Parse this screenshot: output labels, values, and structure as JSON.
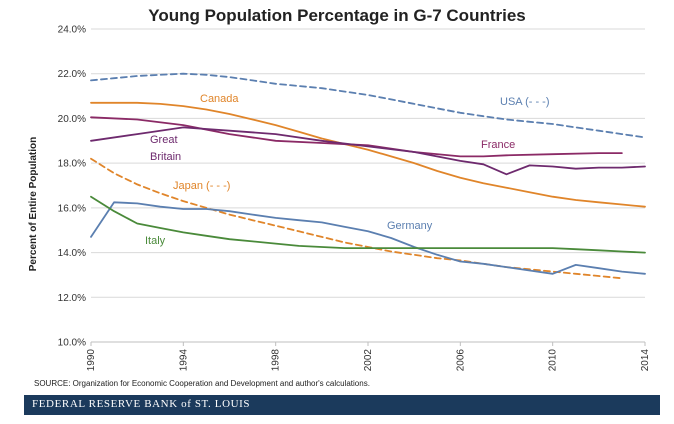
{
  "chart_data": {
    "type": "line",
    "title": "Young Population Percentage in G-7 Countries",
    "ylabel": "Percent of Entire Population",
    "xlabel": "",
    "x_ticks": [
      "1990",
      "1994",
      "1998",
      "2002",
      "2006",
      "2010",
      "2014"
    ],
    "y_ticks": [
      "10.0%",
      "12.0%",
      "14.0%",
      "16.0%",
      "18.0%",
      "20.0%",
      "22.0%",
      "24.0%"
    ],
    "xlim": [
      1990,
      2014
    ],
    "ylim": [
      10,
      24
    ],
    "grid": "horizontal",
    "series": [
      {
        "name": "USA (- - -)",
        "color": "#5b7fb0",
        "dash": true,
        "x": [
          1990,
          1991,
          1992,
          1993,
          1994,
          1995,
          1996,
          1997,
          1998,
          1999,
          2000,
          2001,
          2002,
          2003,
          2004,
          2005,
          2006,
          2007,
          2008,
          2009,
          2010,
          2011,
          2012,
          2013,
          2014
        ],
        "y": [
          21.7,
          21.8,
          21.9,
          21.95,
          22.0,
          21.95,
          21.85,
          21.7,
          21.55,
          21.45,
          21.35,
          21.2,
          21.05,
          20.85,
          20.65,
          20.45,
          20.25,
          20.1,
          19.95,
          19.85,
          19.75,
          19.6,
          19.45,
          19.3,
          19.15
        ]
      },
      {
        "name": "Canada",
        "color": "#e0852a",
        "x": [
          1990,
          1991,
          1992,
          1993,
          1994,
          1995,
          1996,
          1997,
          1998,
          1999,
          2000,
          2001,
          2002,
          2003,
          2004,
          2005,
          2006,
          2007,
          2008,
          2009,
          2010,
          2011,
          2012,
          2013,
          2014
        ],
        "y": [
          20.7,
          20.7,
          20.7,
          20.65,
          20.55,
          20.4,
          20.2,
          19.95,
          19.7,
          19.4,
          19.1,
          18.85,
          18.6,
          18.3,
          18.0,
          17.65,
          17.35,
          17.1,
          16.9,
          16.7,
          16.5,
          16.35,
          16.25,
          16.15,
          16.05
        ]
      },
      {
        "name": "France",
        "color": "#8b2a66",
        "x": [
          1990,
          1992,
          1994,
          1996,
          1998,
          2000,
          2002,
          2004,
          2006,
          2007,
          2008,
          2010,
          2012,
          2013
        ],
        "y": [
          20.05,
          19.95,
          19.7,
          19.3,
          19.0,
          18.9,
          18.8,
          18.5,
          18.3,
          18.3,
          18.35,
          18.4,
          18.45,
          18.45
        ]
      },
      {
        "name": "Great Britain",
        "color": "#6e2a6e",
        "x": [
          1990,
          1992,
          1994,
          1996,
          1998,
          2000,
          2002,
          2004,
          2006,
          2007,
          2008,
          2009,
          2010,
          2011,
          2012,
          2013,
          2014
        ],
        "y": [
          19.0,
          19.3,
          19.6,
          19.45,
          19.3,
          19.0,
          18.75,
          18.5,
          18.1,
          17.95,
          17.5,
          17.9,
          17.85,
          17.75,
          17.8,
          17.8,
          17.85
        ]
      },
      {
        "name": "Japan (- - -)",
        "color": "#e0852a",
        "dash": true,
        "x": [
          1990,
          1991,
          1992,
          1993,
          1994,
          1995,
          1996,
          1997,
          1998,
          1999,
          2000,
          2001,
          2002,
          2003,
          2004,
          2005,
          2006,
          2007,
          2008,
          2009,
          2010,
          2011,
          2012,
          2013
        ],
        "y": [
          18.2,
          17.55,
          17.05,
          16.65,
          16.3,
          16.0,
          15.7,
          15.45,
          15.2,
          14.95,
          14.7,
          14.45,
          14.25,
          14.05,
          13.9,
          13.75,
          13.65,
          13.5,
          13.35,
          13.25,
          13.15,
          13.05,
          12.95,
          12.85
        ]
      },
      {
        "name": "Germany",
        "color": "#5b7fb0",
        "x": [
          1990,
          1991,
          1992,
          1993,
          1994,
          1995,
          1996,
          1997,
          1998,
          1999,
          2000,
          2001,
          2002,
          2003,
          2004,
          2005,
          2006,
          2007,
          2008,
          2009,
          2010,
          2011,
          2012,
          2013,
          2014
        ],
        "y": [
          14.7,
          16.25,
          16.2,
          16.05,
          15.95,
          15.95,
          15.85,
          15.7,
          15.55,
          15.45,
          15.35,
          15.15,
          14.95,
          14.65,
          14.25,
          13.9,
          13.6,
          13.5,
          13.35,
          13.2,
          13.05,
          13.45,
          13.3,
          13.15,
          13.05
        ]
      },
      {
        "name": "Italy",
        "color": "#4a8a3a",
        "x": [
          1990,
          1991,
          1992,
          1993,
          1994,
          1995,
          1996,
          1997,
          1998,
          1999,
          2000,
          2001,
          2002,
          2003,
          2004,
          2005,
          2006,
          2007,
          2008,
          2009,
          2010,
          2011,
          2012,
          2013,
          2014
        ],
        "y": [
          16.5,
          15.85,
          15.3,
          15.1,
          14.9,
          14.75,
          14.6,
          14.5,
          14.4,
          14.3,
          14.25,
          14.2,
          14.2,
          14.2,
          14.2,
          14.2,
          14.2,
          14.2,
          14.2,
          14.2,
          14.2,
          14.15,
          14.1,
          14.05,
          14.0
        ]
      }
    ],
    "annotations": [
      {
        "text": "USA (- - -)",
        "color": "#5b7fb0"
      },
      {
        "text": "Canada",
        "color": "#e0852a"
      },
      {
        "text": "France",
        "color": "#8b2a66"
      },
      {
        "text": "Great",
        "color": "#6e2a6e"
      },
      {
        "text": "Britain",
        "color": "#6e2a6e"
      },
      {
        "text": "Japan (- - -)",
        "color": "#e0852a"
      },
      {
        "text": "Germany",
        "color": "#5b7fb0"
      },
      {
        "text": "Italy",
        "color": "#4a8a3a"
      }
    ]
  },
  "source": "SOURCE: Organization for Economic Cooperation and Development and author's calculations.",
  "footer": "FEDERAL RESERVE BANK of ST. LOUIS"
}
